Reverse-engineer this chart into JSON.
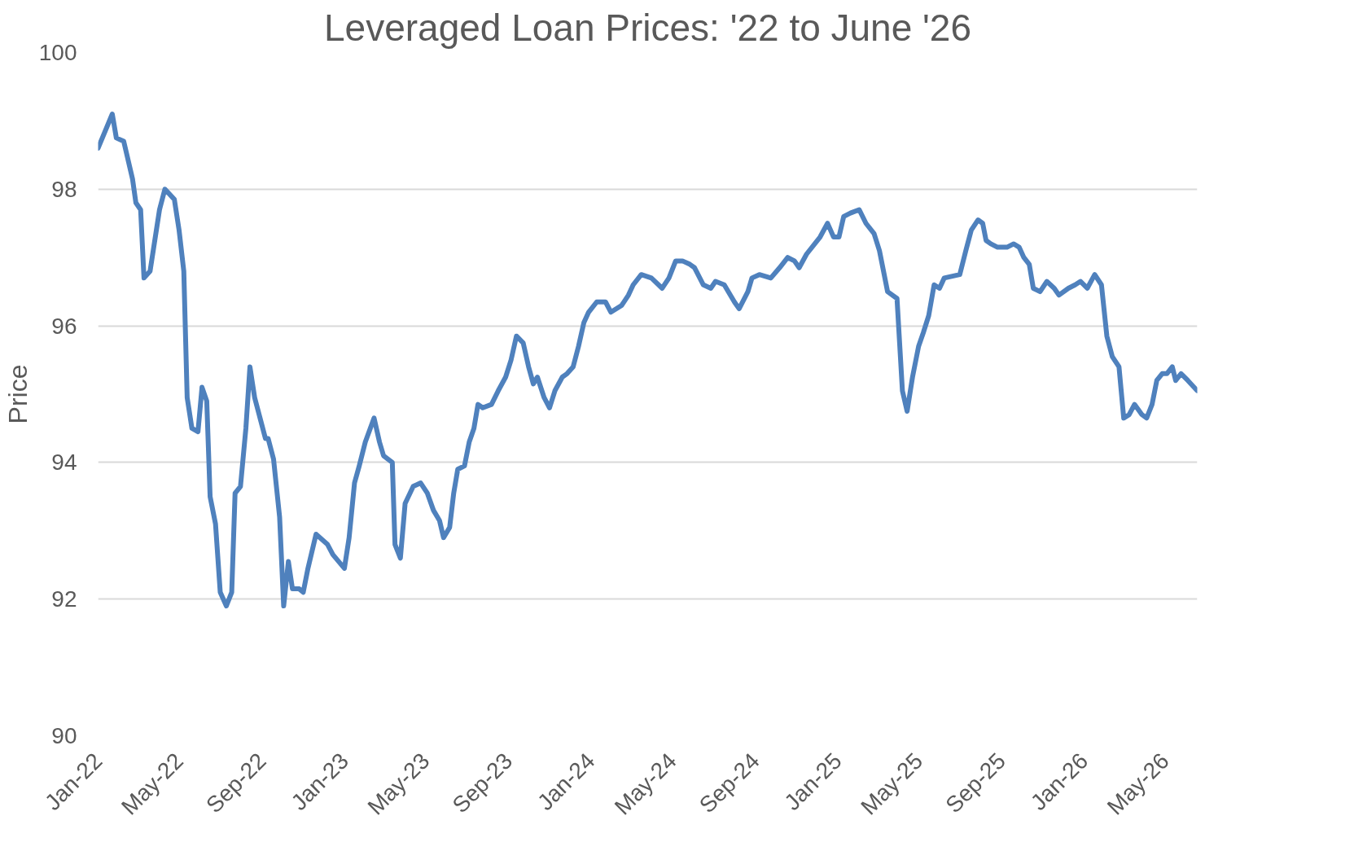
{
  "chart_data": {
    "type": "line",
    "title": "Leveraged Loan Prices: '22 to June '26",
    "ylabel": "Price",
    "x": [
      "2022-01-01",
      "2022-01-22",
      "2022-01-28",
      "2022-02-08",
      "2022-02-21",
      "2022-02-26",
      "2022-03-05",
      "2022-03-10",
      "2022-03-19",
      "2022-04-02",
      "2022-04-10",
      "2022-04-24",
      "2022-05-01",
      "2022-05-08",
      "2022-05-13",
      "2022-05-20",
      "2022-05-29",
      "2022-06-04",
      "2022-06-11",
      "2022-06-16",
      "2022-06-24",
      "2022-07-01",
      "2022-07-10",
      "2022-07-18",
      "2022-07-23",
      "2022-07-31",
      "2022-08-08",
      "2022-08-14",
      "2022-08-21",
      "2022-08-29",
      "2022-09-06",
      "2022-09-10",
      "2022-09-18",
      "2022-09-27",
      "2022-10-03",
      "2022-10-10",
      "2022-10-16",
      "2022-10-26",
      "2022-11-01",
      "2022-11-08",
      "2022-11-20",
      "2022-12-07",
      "2022-12-15",
      "2023-01-01",
      "2023-01-08",
      "2023-01-16",
      "2023-01-23",
      "2023-02-01",
      "2023-02-14",
      "2023-02-22",
      "2023-02-28",
      "2023-03-13",
      "2023-03-17",
      "2023-03-25",
      "2023-04-01",
      "2023-04-13",
      "2023-04-24",
      "2023-05-04",
      "2023-05-13",
      "2023-05-22",
      "2023-05-28",
      "2023-06-06",
      "2023-06-12",
      "2023-06-18",
      "2023-06-28",
      "2023-07-05",
      "2023-07-12",
      "2023-07-18",
      "2023-07-25",
      "2023-08-07",
      "2023-08-17",
      "2023-08-28",
      "2023-09-05",
      "2023-09-13",
      "2023-09-23",
      "2023-10-01",
      "2023-10-08",
      "2023-10-14",
      "2023-10-24",
      "2023-11-01",
      "2023-11-09",
      "2023-11-20",
      "2023-11-27",
      "2023-12-06",
      "2023-12-14",
      "2023-12-22",
      "2023-12-29",
      "2024-01-10",
      "2024-01-23",
      "2024-01-31",
      "2024-02-16",
      "2024-02-26",
      "2024-03-04",
      "2024-03-16",
      "2024-03-31",
      "2024-04-16",
      "2024-04-26",
      "2024-05-06",
      "2024-05-16",
      "2024-05-27",
      "2024-06-03",
      "2024-06-16",
      "2024-06-27",
      "2024-07-04",
      "2024-07-17",
      "2024-08-01",
      "2024-08-08",
      "2024-08-21",
      "2024-08-27",
      "2024-09-07",
      "2024-09-24",
      "2024-10-07",
      "2024-10-19",
      "2024-10-29",
      "2024-11-05",
      "2024-11-16",
      "2024-12-06",
      "2024-12-17",
      "2024-12-26",
      "2025-01-03",
      "2025-01-10",
      "2025-01-20",
      "2025-02-02",
      "2025-02-12",
      "2025-02-24",
      "2025-03-04",
      "2025-03-11",
      "2025-03-16",
      "2025-03-30",
      "2025-04-07",
      "2025-04-14",
      "2025-04-22",
      "2025-05-01",
      "2025-05-08",
      "2025-05-16",
      "2025-05-24",
      "2025-06-01",
      "2025-06-08",
      "2025-07-01",
      "2025-07-10",
      "2025-07-18",
      "2025-07-28",
      "2025-08-04",
      "2025-08-09",
      "2025-08-16",
      "2025-08-26",
      "2025-09-09",
      "2025-09-19",
      "2025-09-27",
      "2025-10-04",
      "2025-10-12",
      "2025-10-18",
      "2025-10-28",
      "2025-11-07",
      "2025-11-18",
      "2025-11-25",
      "2025-12-09",
      "2025-12-19",
      "2025-12-27",
      "2026-01-06",
      "2026-01-17",
      "2026-01-27",
      "2026-02-04",
      "2026-02-12",
      "2026-02-22",
      "2026-03-01",
      "2026-03-09",
      "2026-03-17",
      "2026-03-28",
      "2026-04-04",
      "2026-04-12",
      "2026-04-19",
      "2026-04-27",
      "2026-05-04",
      "2026-05-12",
      "2026-05-17",
      "2026-05-25",
      "2026-06-04",
      "2026-06-18"
    ],
    "series": [
      {
        "color": "#4f81bd",
        "values": [
          98.6,
          99.1,
          98.75,
          98.7,
          98.15,
          97.8,
          97.7,
          96.7,
          96.8,
          97.7,
          98.0,
          97.85,
          97.4,
          96.8,
          94.95,
          94.5,
          94.45,
          95.1,
          94.9,
          93.5,
          93.1,
          92.1,
          91.9,
          92.1,
          93.55,
          93.65,
          94.5,
          95.4,
          94.95,
          94.65,
          94.35,
          94.35,
          94.05,
          93.2,
          91.9,
          92.55,
          92.15,
          92.15,
          92.1,
          92.45,
          92.95,
          92.8,
          92.65,
          92.45,
          92.9,
          93.7,
          93.95,
          94.3,
          94.65,
          94.3,
          94.1,
          94.0,
          92.8,
          92.6,
          93.4,
          93.65,
          93.7,
          93.55,
          93.3,
          93.15,
          92.9,
          93.05,
          93.55,
          93.9,
          93.95,
          94.3,
          94.5,
          94.85,
          94.8,
          94.85,
          95.05,
          95.25,
          95.5,
          95.85,
          95.75,
          95.4,
          95.15,
          95.25,
          94.95,
          94.8,
          95.05,
          95.25,
          95.3,
          95.4,
          95.7,
          96.05,
          96.2,
          96.35,
          96.35,
          96.2,
          96.3,
          96.45,
          96.6,
          96.75,
          96.7,
          96.55,
          96.7,
          96.95,
          96.95,
          96.9,
          96.85,
          96.6,
          96.55,
          96.65,
          96.6,
          96.35,
          96.25,
          96.5,
          96.7,
          96.75,
          96.7,
          96.85,
          97.0,
          96.95,
          96.85,
          97.05,
          97.3,
          97.5,
          97.3,
          97.3,
          97.6,
          97.65,
          97.7,
          97.5,
          97.35,
          97.1,
          96.75,
          96.5,
          96.4,
          95.05,
          94.75,
          95.25,
          95.7,
          95.9,
          96.15,
          96.6,
          96.55,
          96.7,
          96.75,
          97.1,
          97.4,
          97.55,
          97.5,
          97.25,
          97.2,
          97.15,
          97.15,
          97.2,
          97.15,
          97.0,
          96.9,
          96.55,
          96.5,
          96.65,
          96.55,
          96.45,
          96.55,
          96.6,
          96.65,
          96.55,
          96.75,
          96.6,
          95.85,
          95.55,
          95.4,
          94.65,
          94.7,
          94.85,
          94.7,
          94.65,
          94.85,
          95.2,
          95.3,
          95.3,
          95.4,
          95.2,
          95.3,
          95.2,
          95.05
        ]
      }
    ],
    "xlim": [
      "2022-01-01",
      "2026-06-18"
    ],
    "xticks": [
      {
        "value": "2022-01-01",
        "label": "Jan-22"
      },
      {
        "value": "2022-05-01",
        "label": "May-22"
      },
      {
        "value": "2022-09-01",
        "label": "Sep-22"
      },
      {
        "value": "2023-01-01",
        "label": "Jan-23"
      },
      {
        "value": "2023-05-01",
        "label": "May-23"
      },
      {
        "value": "2023-09-01",
        "label": "Sep-23"
      },
      {
        "value": "2024-01-01",
        "label": "Jan-24"
      },
      {
        "value": "2024-05-01",
        "label": "May-24"
      },
      {
        "value": "2024-09-01",
        "label": "Sep-24"
      },
      {
        "value": "2025-01-01",
        "label": "Jan-25"
      },
      {
        "value": "2025-05-01",
        "label": "May-25"
      },
      {
        "value": "2025-09-01",
        "label": "Sep-25"
      },
      {
        "value": "2026-01-01",
        "label": "Jan-26"
      },
      {
        "value": "2026-05-01",
        "label": "May-26"
      }
    ],
    "ylim": [
      90,
      100
    ],
    "yticks": [
      90,
      92,
      94,
      96,
      98,
      100
    ],
    "grid": "y",
    "line_style": "solid",
    "marker": "none"
  }
}
